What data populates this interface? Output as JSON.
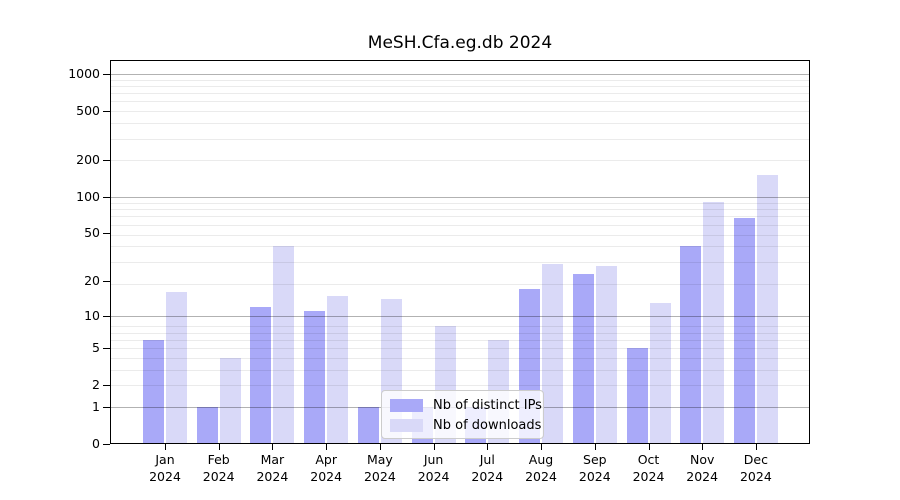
{
  "title": "MeSH.Cfa.eg.db 2024",
  "chart_data": {
    "type": "bar",
    "title": "MeSH.Cfa.eg.db 2024",
    "y_scale": "log10(value+1)",
    "months": [
      "Jan",
      "Feb",
      "Mar",
      "Apr",
      "May",
      "Jun",
      "Jul",
      "Aug",
      "Sep",
      "Oct",
      "Nov",
      "Dec"
    ],
    "year": "2024",
    "series": [
      {
        "name": "Nb of distinct IPs",
        "color": "#a9a9f8",
        "values": [
          6,
          1,
          12,
          11,
          1,
          1,
          1,
          17,
          23,
          5,
          39,
          67
        ]
      },
      {
        "name": "Nb of downloads",
        "color": "#d9d9f8",
        "values": [
          16,
          4,
          39,
          15,
          14,
          8,
          6,
          28,
          27,
          13,
          91,
          150
        ]
      }
    ],
    "y_axis": {
      "ticks": [
        0,
        1,
        2,
        5,
        10,
        20,
        50,
        100,
        200,
        500,
        1000
      ],
      "major_gridline_values": [
        1,
        10,
        100,
        1000
      ],
      "top_value": 1000
    },
    "grid": true,
    "legend_position": "lower-center-inside"
  }
}
